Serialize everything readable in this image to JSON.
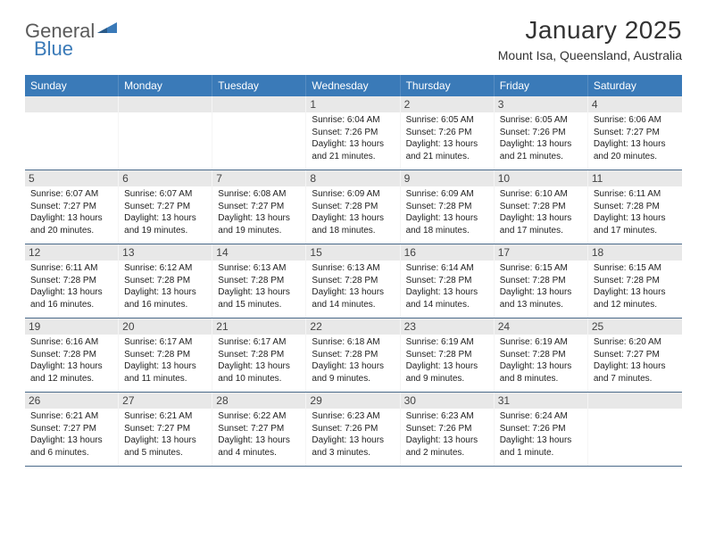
{
  "brand": {
    "part1": "General",
    "part2": "Blue"
  },
  "title": "January 2025",
  "location": "Mount Isa, Queensland, Australia",
  "colors": {
    "header_blue": "#3a7ab8",
    "row_divider": "#4a6a8a",
    "day_number_bg": "#e8e8e8",
    "text": "#222222"
  },
  "weekdays": [
    "Sunday",
    "Monday",
    "Tuesday",
    "Wednesday",
    "Thursday",
    "Friday",
    "Saturday"
  ],
  "weeks": [
    [
      null,
      null,
      null,
      {
        "n": "1",
        "sr": "6:04 AM",
        "ss": "7:26 PM",
        "dl": "13 hours and 21 minutes."
      },
      {
        "n": "2",
        "sr": "6:05 AM",
        "ss": "7:26 PM",
        "dl": "13 hours and 21 minutes."
      },
      {
        "n": "3",
        "sr": "6:05 AM",
        "ss": "7:26 PM",
        "dl": "13 hours and 21 minutes."
      },
      {
        "n": "4",
        "sr": "6:06 AM",
        "ss": "7:27 PM",
        "dl": "13 hours and 20 minutes."
      }
    ],
    [
      {
        "n": "5",
        "sr": "6:07 AM",
        "ss": "7:27 PM",
        "dl": "13 hours and 20 minutes."
      },
      {
        "n": "6",
        "sr": "6:07 AM",
        "ss": "7:27 PM",
        "dl": "13 hours and 19 minutes."
      },
      {
        "n": "7",
        "sr": "6:08 AM",
        "ss": "7:27 PM",
        "dl": "13 hours and 19 minutes."
      },
      {
        "n": "8",
        "sr": "6:09 AM",
        "ss": "7:28 PM",
        "dl": "13 hours and 18 minutes."
      },
      {
        "n": "9",
        "sr": "6:09 AM",
        "ss": "7:28 PM",
        "dl": "13 hours and 18 minutes."
      },
      {
        "n": "10",
        "sr": "6:10 AM",
        "ss": "7:28 PM",
        "dl": "13 hours and 17 minutes."
      },
      {
        "n": "11",
        "sr": "6:11 AM",
        "ss": "7:28 PM",
        "dl": "13 hours and 17 minutes."
      }
    ],
    [
      {
        "n": "12",
        "sr": "6:11 AM",
        "ss": "7:28 PM",
        "dl": "13 hours and 16 minutes."
      },
      {
        "n": "13",
        "sr": "6:12 AM",
        "ss": "7:28 PM",
        "dl": "13 hours and 16 minutes."
      },
      {
        "n": "14",
        "sr": "6:13 AM",
        "ss": "7:28 PM",
        "dl": "13 hours and 15 minutes."
      },
      {
        "n": "15",
        "sr": "6:13 AM",
        "ss": "7:28 PM",
        "dl": "13 hours and 14 minutes."
      },
      {
        "n": "16",
        "sr": "6:14 AM",
        "ss": "7:28 PM",
        "dl": "13 hours and 14 minutes."
      },
      {
        "n": "17",
        "sr": "6:15 AM",
        "ss": "7:28 PM",
        "dl": "13 hours and 13 minutes."
      },
      {
        "n": "18",
        "sr": "6:15 AM",
        "ss": "7:28 PM",
        "dl": "13 hours and 12 minutes."
      }
    ],
    [
      {
        "n": "19",
        "sr": "6:16 AM",
        "ss": "7:28 PM",
        "dl": "13 hours and 12 minutes."
      },
      {
        "n": "20",
        "sr": "6:17 AM",
        "ss": "7:28 PM",
        "dl": "13 hours and 11 minutes."
      },
      {
        "n": "21",
        "sr": "6:17 AM",
        "ss": "7:28 PM",
        "dl": "13 hours and 10 minutes."
      },
      {
        "n": "22",
        "sr": "6:18 AM",
        "ss": "7:28 PM",
        "dl": "13 hours and 9 minutes."
      },
      {
        "n": "23",
        "sr": "6:19 AM",
        "ss": "7:28 PM",
        "dl": "13 hours and 9 minutes."
      },
      {
        "n": "24",
        "sr": "6:19 AM",
        "ss": "7:28 PM",
        "dl": "13 hours and 8 minutes."
      },
      {
        "n": "25",
        "sr": "6:20 AM",
        "ss": "7:27 PM",
        "dl": "13 hours and 7 minutes."
      }
    ],
    [
      {
        "n": "26",
        "sr": "6:21 AM",
        "ss": "7:27 PM",
        "dl": "13 hours and 6 minutes."
      },
      {
        "n": "27",
        "sr": "6:21 AM",
        "ss": "7:27 PM",
        "dl": "13 hours and 5 minutes."
      },
      {
        "n": "28",
        "sr": "6:22 AM",
        "ss": "7:27 PM",
        "dl": "13 hours and 4 minutes."
      },
      {
        "n": "29",
        "sr": "6:23 AM",
        "ss": "7:26 PM",
        "dl": "13 hours and 3 minutes."
      },
      {
        "n": "30",
        "sr": "6:23 AM",
        "ss": "7:26 PM",
        "dl": "13 hours and 2 minutes."
      },
      {
        "n": "31",
        "sr": "6:24 AM",
        "ss": "7:26 PM",
        "dl": "13 hours and 1 minute."
      },
      null
    ]
  ],
  "labels": {
    "sunrise": "Sunrise:",
    "sunset": "Sunset:",
    "daylight": "Daylight:"
  }
}
